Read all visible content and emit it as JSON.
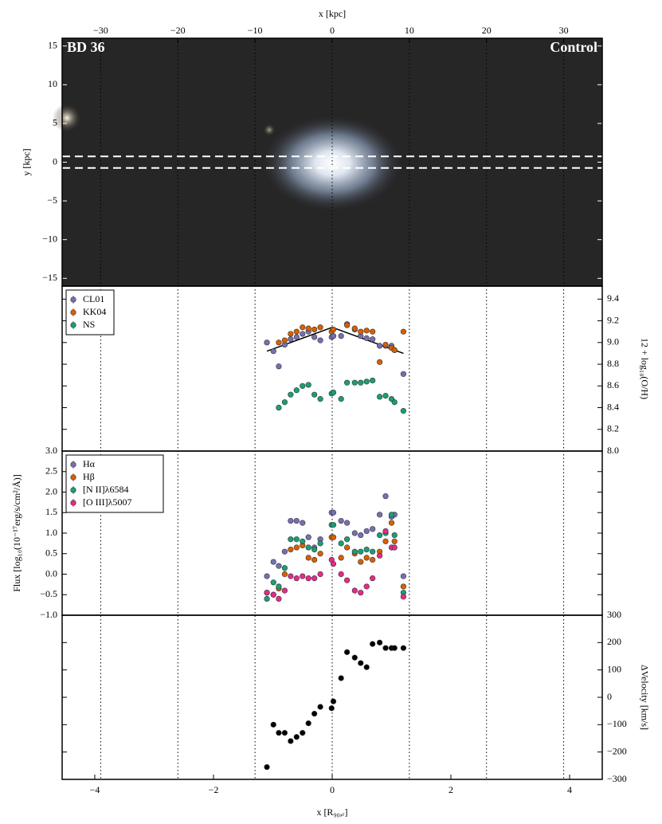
{
  "chart_data": [
    {
      "type": "image",
      "annotations": [
        {
          "text": "BD 36",
          "corner": "upper left"
        },
        {
          "text": "Control",
          "corner": "upper right"
        }
      ],
      "xlabel": "x [kpc]",
      "xlim": [
        -35,
        35
      ],
      "xticks": [
        {
          "value": -30,
          "label": "−30"
        },
        {
          "value": -20,
          "label": "−20"
        },
        {
          "value": -10,
          "label": "−10"
        },
        0,
        10,
        20,
        30
      ],
      "ylabel": "y [kpc]",
      "ylim": [
        -16,
        16
      ],
      "yticks": [
        {
          "value": -15,
          "label": "−15"
        },
        {
          "value": -10,
          "label": "−10"
        },
        {
          "value": -5,
          "label": "−5"
        },
        0,
        5,
        10,
        15
      ],
      "grid": true,
      "slit": [
        -0.75,
        0.75
      ]
    },
    {
      "type": "scatter",
      "ylabel": "12 + log₁₀(O/H)",
      "yaxis": "right",
      "legend": "upper left",
      "ylim": [
        8.0,
        9.52
      ],
      "yticks": [
        {
          "value": 8,
          "label": "8.0"
        },
        8.2,
        8.4,
        8.6,
        8.8,
        {
          "value": 9,
          "label": "9.0"
        },
        9.2,
        9.4
      ],
      "x": [
        -1.1,
        -0.99,
        -0.9,
        -0.8,
        -0.7,
        -0.6,
        -0.5,
        -0.4,
        -0.3,
        -0.2,
        -0.01,
        0.02,
        0.15,
        0.25,
        0.38,
        0.48,
        0.58,
        0.68,
        0.8,
        0.9,
        1.0,
        1.05,
        1.2
      ],
      "series": [
        {
          "name": "CL01",
          "color": "#7570b3",
          "values": [
            9.0,
            8.92,
            8.78,
            8.98,
            9.03,
            9.05,
            9.08,
            9.1,
            9.05,
            9.02,
            9.05,
            9.06,
            9.06,
            9.17,
            9.12,
            9.06,
            9.04,
            9.03,
            8.97,
            8.97,
            8.97,
            8.93,
            8.71
          ]
        },
        {
          "name": "KK04",
          "color": "#d95f02",
          "values": [
            null,
            null,
            9.0,
            9.02,
            9.08,
            9.1,
            9.14,
            9.13,
            9.12,
            9.14,
            9.1,
            9.12,
            null,
            9.16,
            9.13,
            9.1,
            9.11,
            9.1,
            8.82,
            8.98,
            8.95,
            8.93,
            9.1
          ]
        },
        {
          "name": "NS",
          "color": "#1b9e77",
          "values": [
            null,
            null,
            8.4,
            8.45,
            8.52,
            8.56,
            8.6,
            8.61,
            8.52,
            8.48,
            8.53,
            8.54,
            8.48,
            8.63,
            8.63,
            8.63,
            8.64,
            8.65,
            8.5,
            8.51,
            8.48,
            8.45,
            8.37
          ]
        }
      ],
      "model": {
        "color": "#000000",
        "x": [
          -1.1,
          0,
          1.2
        ],
        "y": [
          8.92,
          9.14,
          8.9
        ]
      }
    },
    {
      "type": "scatter",
      "ylabel": "Flux [log₁₀(10⁻¹⁷erg/s/cm²/Å)]",
      "yaxis": "left",
      "legend": "upper left",
      "ylim": [
        -1,
        3
      ],
      "yticks": [
        {
          "value": -1,
          "label": "−1.0"
        },
        {
          "value": -0.5,
          "label": "−0.5"
        },
        {
          "value": 0,
          "label": "0.0"
        },
        0.5,
        {
          "value": 1,
          "label": "1.0"
        },
        1.5,
        {
          "value": 2,
          "label": "2.0"
        },
        2.5,
        {
          "value": 3,
          "label": "3.0"
        }
      ],
      "x": [
        -1.1,
        -0.99,
        -0.9,
        -0.8,
        -0.7,
        -0.6,
        -0.5,
        -0.4,
        -0.3,
        -0.2,
        -0.01,
        0.02,
        0.15,
        0.25,
        0.38,
        0.48,
        0.58,
        0.68,
        0.8,
        0.9,
        1.0,
        1.05,
        1.2
      ],
      "series": [
        {
          "name": "Hα",
          "color": "#7570b3",
          "values": [
            -0.05,
            0.3,
            0.2,
            0.55,
            1.3,
            1.3,
            1.25,
            0.9,
            0.65,
            0.85,
            1.5,
            1.5,
            1.3,
            1.25,
            1.0,
            0.95,
            1.05,
            1.1,
            1.45,
            1.9,
            1.4,
            1.45,
            -0.05
          ]
        },
        {
          "name": "Hβ",
          "color": "#d95f02",
          "values": [
            -0.45,
            -0.5,
            -0.35,
            0.0,
            0.6,
            0.65,
            0.7,
            0.4,
            0.35,
            0.5,
            0.9,
            0.9,
            0.4,
            0.65,
            0.5,
            0.3,
            0.4,
            0.35,
            0.55,
            0.8,
            1.25,
            0.8,
            -0.3
          ]
        },
        {
          "name": "[N II]λ6584",
          "color": "#1b9e77",
          "values": [
            -0.6,
            -0.2,
            -0.3,
            0.15,
            0.85,
            0.85,
            0.8,
            0.65,
            0.6,
            0.75,
            1.2,
            1.2,
            0.75,
            0.85,
            0.55,
            0.55,
            0.6,
            0.55,
            0.95,
            1.0,
            1.45,
            0.95,
            -0.45
          ]
        },
        {
          "name": "[O III]λ5007",
          "color": "#e7298a",
          "values": [
            -0.45,
            -0.5,
            -0.6,
            -0.4,
            -0.05,
            -0.1,
            -0.05,
            -0.1,
            -0.1,
            0.0,
            0.35,
            0.25,
            0.0,
            -0.15,
            -0.4,
            -0.45,
            -0.3,
            -0.1,
            0.45,
            1.05,
            0.65,
            0.65,
            -0.55
          ]
        }
      ]
    },
    {
      "type": "scatter",
      "ylabel": "ΔVelocity [km/s]",
      "yaxis": "right",
      "ylim": [
        -300,
        300
      ],
      "yticks": [
        {
          "value": -300,
          "label": "−300"
        },
        {
          "value": -200,
          "label": "−200"
        },
        {
          "value": -100,
          "label": "−100"
        },
        0,
        100,
        200,
        300
      ],
      "xlabel": "x [R₉₀,ᵣ]",
      "xlim": [
        -4.55,
        4.55
      ],
      "xticks": [
        {
          "value": -4,
          "label": "−4"
        },
        {
          "value": -2,
          "label": "−2"
        },
        0,
        2,
        4
      ],
      "x": [
        -1.1,
        -0.99,
        -0.9,
        -0.8,
        -0.7,
        -0.6,
        -0.5,
        -0.4,
        -0.3,
        -0.2,
        -0.01,
        0.02,
        0.15,
        0.25,
        0.38,
        0.48,
        0.58,
        0.68,
        0.8,
        0.9,
        1.0,
        1.05,
        1.2
      ],
      "series": [
        {
          "color": "#000000",
          "values": [
            -255,
            -100,
            -130,
            -130,
            -160,
            -145,
            -130,
            -95,
            -60,
            -35,
            -40,
            -15,
            70,
            165,
            145,
            125,
            110,
            195,
            200,
            180,
            180,
            180,
            180
          ]
        }
      ]
    }
  ]
}
